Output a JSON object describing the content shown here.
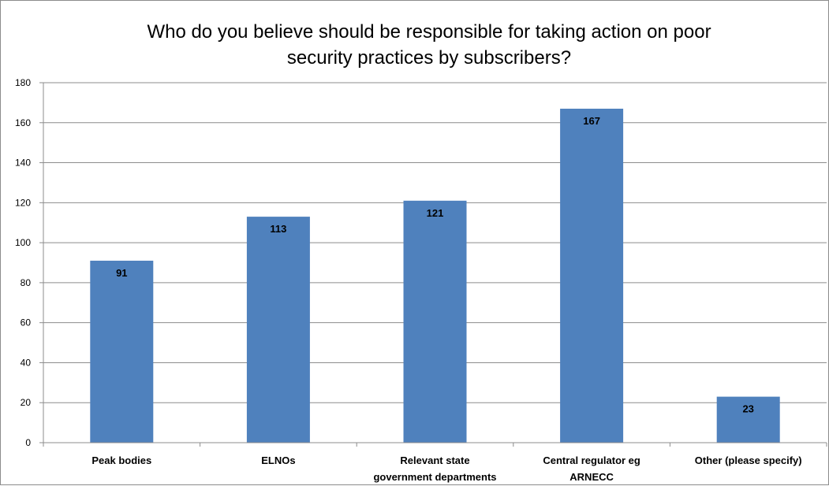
{
  "chart_data": {
    "type": "bar",
    "title": "Who do you believe should be responsible for taking action on poor security practices by subscribers?",
    "title_lines": [
      "Who do you believe should be responsible for taking action on poor",
      "security practices by subscribers?"
    ],
    "categories": [
      "Peak bodies",
      "ELNOs",
      "Relevant state government departments",
      "Central regulator eg ARNECC",
      "Other (please specify)"
    ],
    "category_label_lines": [
      [
        "Peak bodies"
      ],
      [
        "ELNOs"
      ],
      [
        "Relevant state",
        "government departments"
      ],
      [
        "Central regulator eg",
        "ARNECC"
      ],
      [
        "Other (please specify)"
      ]
    ],
    "values": [
      91,
      113,
      121,
      167,
      23
    ],
    "data_labels": [
      "91",
      "113",
      "121",
      "167",
      "23"
    ],
    "ylim": [
      0,
      180
    ],
    "yticks": [
      "0",
      "20",
      "40",
      "60",
      "80",
      "100",
      "120",
      "140",
      "160",
      "180"
    ],
    "xlabel": "",
    "ylabel": "",
    "grid": true,
    "legend": "none",
    "colors": {
      "bar": "#4f81bd",
      "gridline": "#8c8c8c",
      "axis": "#8c8c8c",
      "text": "#000000",
      "background": "#ffffff"
    }
  }
}
